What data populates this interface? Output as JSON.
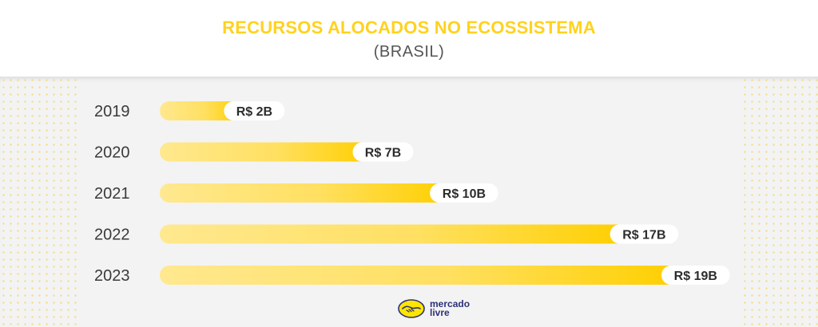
{
  "header": {
    "title": "RECURSOS ALOCADOS NO ECOSSISTEMA",
    "subtitle": "(BRASIL)"
  },
  "colors": {
    "accent": "#ffd21f",
    "bar_light": "#ffe68a",
    "bar_dark": "#ffd000",
    "panel": "#f3f3f3",
    "logo_blue": "#2d3277"
  },
  "chart_data": {
    "type": "bar",
    "orientation": "horizontal",
    "title": "RECURSOS ALOCADOS NO ECOSSISTEMA",
    "subtitle": "(BRASIL)",
    "categories": [
      "2019",
      "2020",
      "2021",
      "2022",
      "2023"
    ],
    "values": [
      2,
      7,
      10,
      17,
      19
    ],
    "data_labels": [
      "R$ 2B",
      "R$ 7B",
      "R$ 10B",
      "R$ 17B",
      "R$ 19B"
    ],
    "unit": "R$ B",
    "xlim": [
      0,
      19
    ],
    "grid": false,
    "legend": "none"
  },
  "footer": {
    "logo_icon": "handshake-icon",
    "logo_line1": "mercado",
    "logo_line2": "livre"
  }
}
